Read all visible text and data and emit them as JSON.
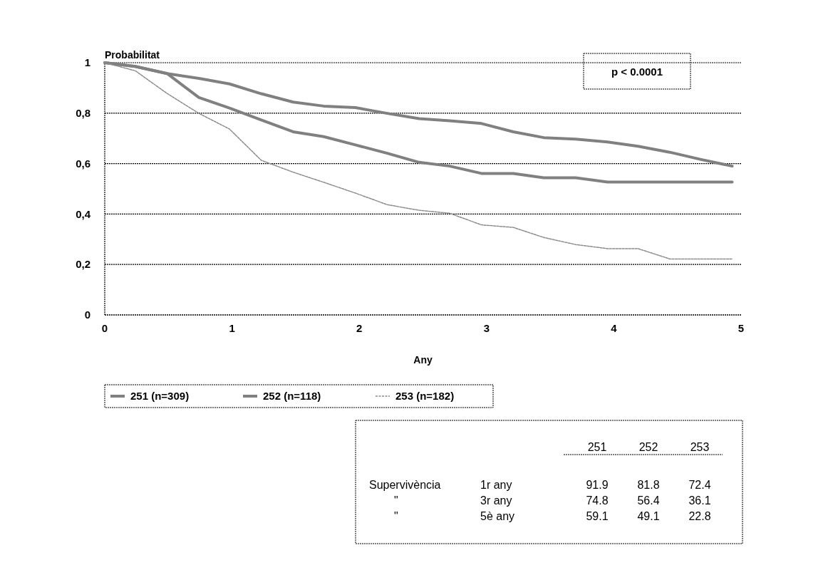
{
  "chart_data": {
    "type": "line",
    "ylabel": "Probabilitat",
    "xlabel": "Any",
    "xlim": [
      0,
      5
    ],
    "xticks": [
      0,
      1,
      2,
      3,
      4,
      5
    ],
    "ylim": [
      0,
      1
    ],
    "yticks": [
      {
        "value": 0,
        "label": "0"
      },
      {
        "value": 0.2,
        "label": "0,2"
      },
      {
        "value": 0.4,
        "label": "0,4"
      },
      {
        "value": 0.6,
        "label": "0,6"
      },
      {
        "value": 0.8,
        "label": "0,8"
      },
      {
        "value": 1,
        "label": "1"
      }
    ],
    "x": [
      0,
      0.24,
      0.49,
      0.74,
      0.98,
      1.23,
      1.48,
      1.72,
      1.97,
      2.22,
      2.47,
      2.71,
      2.96,
      3.21,
      3.45,
      3.7,
      3.95,
      4.19,
      4.44,
      4.68,
      4.93
    ],
    "series": [
      {
        "name": "251 (n=309)",
        "color": "#808080",
        "values": [
          1,
          0.985,
          0.957,
          0.938,
          0.916,
          0.877,
          0.844,
          0.828,
          0.822,
          0.799,
          0.778,
          0.77,
          0.759,
          0.726,
          0.703,
          0.697,
          0.686,
          0.669,
          0.645,
          0.617,
          0.59
        ]
      },
      {
        "name": "252 (n=118)",
        "color": "#808080",
        "values": [
          1,
          0.985,
          0.957,
          0.862,
          0.82,
          0.773,
          0.726,
          0.707,
          0.674,
          0.641,
          0.605,
          0.59,
          0.561,
          0.561,
          0.544,
          0.544,
          0.527,
          0.527,
          0.527,
          0.527,
          0.527
        ]
      },
      {
        "name": "253 (n=182)",
        "color": "#8c8c8c",
        "line_style": "dashed",
        "values": [
          1,
          0.968,
          0.878,
          0.799,
          0.737,
          0.613,
          0.566,
          0.526,
          0.483,
          0.437,
          0.415,
          0.403,
          0.357,
          0.347,
          0.307,
          0.279,
          0.263,
          0.263,
          0.222,
          0.222,
          0.222
        ]
      }
    ],
    "grid": "y",
    "legend": "bottom",
    "annotations": [
      "p < 0.0001",
      "251",
      "252",
      "253",
      "Supervivència",
      "1r any",
      "91.9",
      "81.8",
      "72.4",
      "\"",
      "3r any",
      "74.8",
      "56.4",
      "36.1",
      "\"",
      "5è any",
      "59.1",
      "49.1",
      "22.8"
    ]
  }
}
